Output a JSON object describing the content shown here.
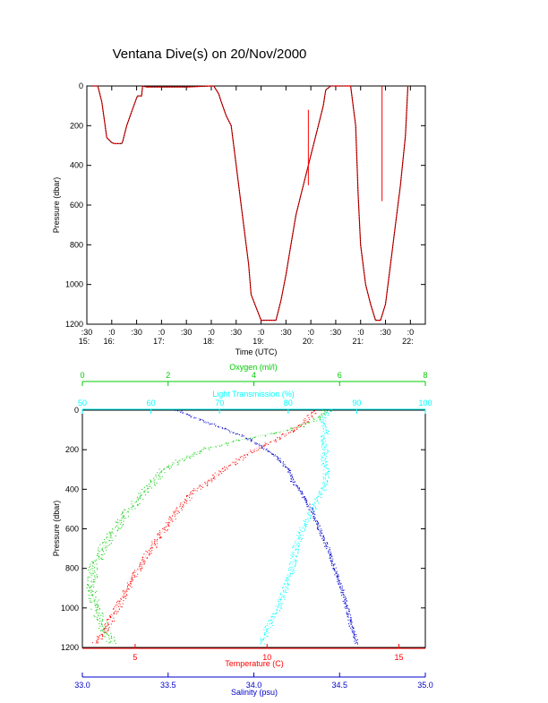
{
  "title": "Ventana Dive(s) on 20/Nov/2000",
  "colors": {
    "axis": "#000000",
    "track": "#000000",
    "track_overlay": "#ff0000",
    "oxygen": "#00cc00",
    "light": "#00ffff",
    "temperature": "#ff0000",
    "salinity": "#0000cc"
  },
  "chart_data": [
    {
      "type": "line",
      "title": "Ventana Dive(s) on 20/Nov/2000",
      "xlabel": "Time (UTC)",
      "ylabel": "Pressure (dbar)",
      "x_unit": "hours UTC",
      "xlim": [
        15.5,
        22.3
      ],
      "ylim": [
        1200,
        0
      ],
      "y_reversed": true,
      "x_tick_minutes": [
        ":30",
        ":0",
        ":30",
        ":0",
        ":30",
        ":0",
        ":30",
        ":0",
        ":30",
        ":0",
        ":30",
        ":0",
        ":30",
        ":0"
      ],
      "x_tick_values": [
        15.5,
        16.0,
        16.5,
        17.0,
        17.5,
        18.0,
        18.5,
        19.0,
        19.5,
        20.0,
        20.5,
        21.0,
        21.5,
        22.0
      ],
      "x_tick_hours": [
        "15:",
        "16:",
        "17:",
        "18:",
        "19:",
        "20:",
        "21:",
        "22:"
      ],
      "x_tick_hour_values": [
        15.5,
        16.0,
        17.0,
        18.0,
        19.0,
        20.0,
        21.0,
        22.0
      ],
      "y_ticks": [
        0,
        200,
        400,
        600,
        800,
        1000,
        1200
      ],
      "series": [
        {
          "x": [
            15.62,
            15.72,
            15.8,
            15.85,
            15.9,
            16.0,
            16.05,
            16.1,
            16.15,
            16.2,
            16.22,
            16.3,
            16.4,
            16.5,
            16.52,
            16.6,
            16.62,
            16.7,
            17.0,
            17.5,
            18.0,
            18.05,
            18.15,
            18.2,
            18.3,
            18.4,
            18.5,
            18.6,
            18.7,
            18.75,
            18.8,
            19.0,
            19.1,
            19.2,
            19.3,
            19.4,
            19.5,
            19.6,
            19.7,
            19.8,
            20.0,
            20.15,
            20.25,
            20.3,
            20.4,
            20.5,
            20.6,
            20.7,
            20.8,
            20.9,
            20.95,
            21.0,
            21.1,
            21.2,
            21.3,
            21.4,
            21.5,
            21.6,
            21.7,
            21.8,
            21.9,
            21.95
          ],
          "y": [
            0,
            0,
            80,
            170,
            260,
            285,
            290,
            290,
            290,
            290,
            280,
            200,
            130,
            60,
            50,
            50,
            0,
            5,
            5,
            5,
            0,
            0,
            40,
            80,
            150,
            200,
            400,
            600,
            800,
            900,
            1050,
            1180,
            1180,
            1180,
            1180,
            1080,
            950,
            800,
            650,
            550,
            350,
            200,
            100,
            20,
            0,
            0,
            0,
            0,
            0,
            200,
            550,
            800,
            1000,
            1100,
            1180,
            1180,
            1100,
            900,
            700,
            500,
            250,
            0
          ]
        }
      ],
      "annotations": [
        {
          "type": "spike",
          "x": 19.95,
          "y_from": 500,
          "y_to": 120
        },
        {
          "type": "spike",
          "x": 21.43,
          "y_from": 580,
          "y_to": 0
        }
      ]
    },
    {
      "type": "scatter",
      "ylabel": "Pressure (dbar)",
      "ylim": [
        1200,
        0
      ],
      "y_reversed": true,
      "y_ticks": [
        0,
        200,
        400,
        600,
        800,
        1000,
        1200
      ],
      "axes": [
        {
          "name": "Oxygen (ml/l)",
          "position": "top-1",
          "lim": [
            0,
            8
          ],
          "ticks": [
            0,
            2,
            4,
            6,
            8
          ],
          "tick_labels": [
            "0",
            "2",
            "4",
            "6",
            "8"
          ]
        },
        {
          "name": "Light Transmission (%)",
          "position": "top-2",
          "lim": [
            50,
            100
          ],
          "ticks": [
            50,
            60,
            70,
            80,
            90,
            100
          ],
          "tick_labels": [
            "50",
            "60",
            "70",
            "80",
            "90",
            "100"
          ]
        },
        {
          "name": "Temperature (C)",
          "position": "bottom-1",
          "lim": [
            3,
            16
          ],
          "ticks": [
            5,
            10,
            15
          ],
          "tick_labels": [
            "5",
            "10",
            "15"
          ]
        },
        {
          "name": "Salinity (psu)",
          "position": "bottom-2",
          "lim": [
            33.0,
            35.0
          ],
          "ticks": [
            33.0,
            33.5,
            34.0,
            34.5,
            35.0
          ],
          "tick_labels": [
            "33.0",
            "33.5",
            "34.0",
            "34.5",
            "35.0"
          ]
        }
      ],
      "series": [
        {
          "name": "Oxygen (ml/l)",
          "pressure": [
            0,
            30,
            60,
            100,
            150,
            200,
            250,
            300,
            350,
            400,
            500,
            600,
            700,
            800,
            900,
            1000,
            1100,
            1180
          ],
          "values": [
            5.7,
            5.6,
            5.3,
            4.8,
            3.7,
            2.8,
            2.3,
            1.9,
            1.7,
            1.5,
            1.1,
            0.75,
            0.45,
            0.25,
            0.2,
            0.3,
            0.5,
            0.7
          ]
        },
        {
          "name": "Light Transmission (%)",
          "pressure": [
            0,
            50,
            100,
            150,
            200,
            250,
            300,
            350,
            400,
            500,
            600,
            700,
            800,
            900,
            1000,
            1100,
            1180
          ],
          "values": [
            86,
            85,
            85.5,
            85,
            85.5,
            85,
            85.5,
            85.5,
            85,
            83.5,
            82,
            81,
            80.5,
            79.5,
            78.5,
            77,
            76
          ]
        },
        {
          "name": "Temperature (C)",
          "pressure": [
            0,
            50,
            100,
            150,
            200,
            250,
            300,
            350,
            400,
            500,
            600,
            700,
            800,
            900,
            1000,
            1100,
            1180
          ],
          "values": [
            11.8,
            11.5,
            11.0,
            10.3,
            9.5,
            8.9,
            8.3,
            7.9,
            7.3,
            6.6,
            6.1,
            5.6,
            5.1,
            4.7,
            4.3,
            3.9,
            3.5
          ]
        },
        {
          "name": "Salinity (psu)",
          "pressure": [
            0,
            50,
            100,
            150,
            200,
            250,
            300,
            350,
            400,
            500,
            600,
            700,
            800,
            900,
            1000,
            1100,
            1180
          ],
          "values": [
            33.55,
            33.7,
            33.85,
            33.98,
            34.08,
            34.15,
            34.2,
            34.22,
            34.26,
            34.33,
            34.38,
            34.43,
            34.47,
            34.51,
            34.54,
            34.57,
            34.6
          ]
        }
      ]
    }
  ]
}
